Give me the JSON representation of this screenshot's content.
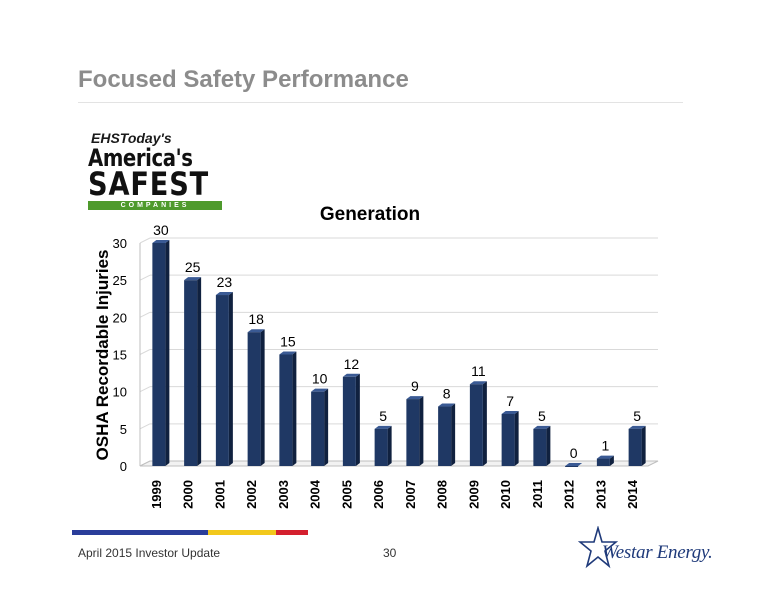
{
  "slide": {
    "title": "Focused Safety Performance",
    "footer_left": "April 2015 Investor Update",
    "page_number": "30"
  },
  "logo": {
    "line1": "EHSToday's",
    "line2": "America's",
    "line3": "SAFEST",
    "line4": "COMPANIES"
  },
  "brand": {
    "name": "Westar Energy.",
    "icon": "star-icon"
  },
  "colors": {
    "bar": "#1f3864",
    "title": "#8c8c8c",
    "stripe_blue": "#2a3d9a",
    "stripe_yellow": "#f2c81c",
    "stripe_red": "#d4202e"
  },
  "chart_data": {
    "type": "bar",
    "title": "Generation",
    "ylabel": "OSHA Recordable Injuries",
    "xlabel": "",
    "categories": [
      "1999",
      "2000",
      "2001",
      "2002",
      "2003",
      "2004",
      "2005",
      "2006",
      "2007",
      "2008",
      "2009",
      "2010",
      "2011",
      "2012",
      "2013",
      "2014"
    ],
    "values": [
      30,
      25,
      23,
      18,
      15,
      10,
      12,
      5,
      9,
      8,
      11,
      7,
      5,
      0,
      1,
      5
    ],
    "ylim": [
      0,
      30
    ],
    "yticks": [
      0,
      5,
      10,
      15,
      20,
      25,
      30
    ],
    "grid": true,
    "legend": "none"
  }
}
